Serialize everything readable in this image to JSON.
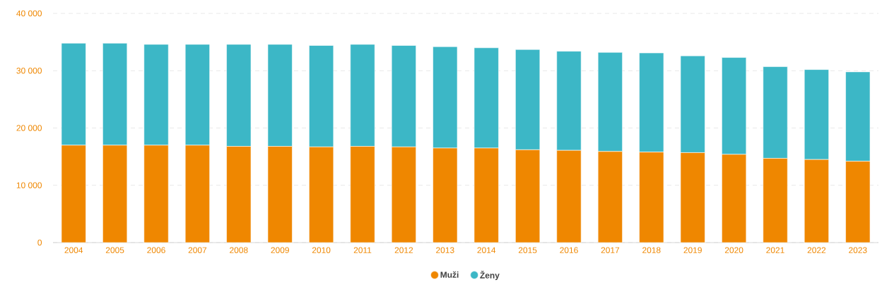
{
  "chart_data": {
    "type": "bar",
    "stacked": true,
    "categories": [
      "2004",
      "2005",
      "2006",
      "2007",
      "2008",
      "2009",
      "2010",
      "2011",
      "2012",
      "2013",
      "2014",
      "2015",
      "2016",
      "2017",
      "2018",
      "2019",
      "2020",
      "2021",
      "2022",
      "2023"
    ],
    "series": [
      {
        "name": "Muži",
        "color": "#ef8700",
        "values": [
          17000,
          17000,
          17000,
          17000,
          16800,
          16800,
          16700,
          16800,
          16700,
          16500,
          16500,
          16200,
          16100,
          15900,
          15800,
          15700,
          15400,
          14700,
          14500,
          14200
        ]
      },
      {
        "name": "Ženy",
        "color": "#3cb7c6",
        "values": [
          17800,
          17800,
          17600,
          17600,
          17800,
          17800,
          17700,
          17800,
          17700,
          17700,
          17500,
          17500,
          17300,
          17300,
          17300,
          16900,
          16900,
          16000,
          15700,
          15600
        ]
      }
    ],
    "ylim": [
      0,
      40000
    ],
    "yticks": [
      {
        "value": 0,
        "label": "0"
      },
      {
        "value": 10000,
        "label": "10 000"
      },
      {
        "value": 20000,
        "label": "20 000"
      },
      {
        "value": 30000,
        "label": "30 000"
      },
      {
        "value": 40000,
        "label": "40 000"
      }
    ],
    "grid": "y",
    "legend": "bottom"
  }
}
